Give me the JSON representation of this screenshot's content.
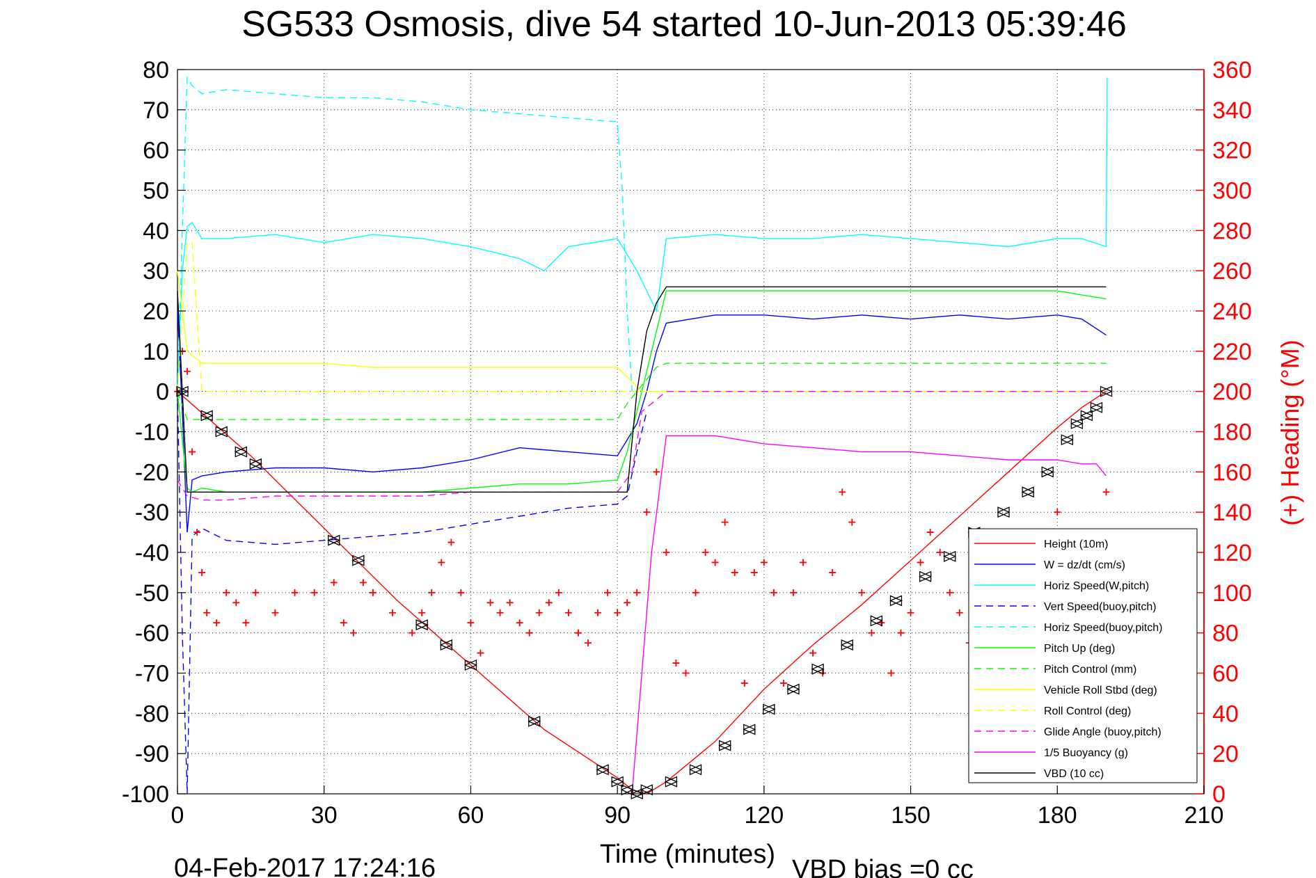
{
  "chart_data": {
    "type": "line",
    "title": "SG533 Osmosis, dive 54 started 10-Jun-2013 05:39:46",
    "xlabel": "Time (minutes)",
    "ylabel_right": "(+) Heading (°M)",
    "footer_timestamp": "04-Feb-2017 17:24:16",
    "footer_vbd": "VBD bias =0 cc",
    "xlim": [
      0,
      210
    ],
    "ylim": [
      -100,
      80
    ],
    "ylim_right": [
      0,
      360
    ],
    "x_ticks": [
      "0",
      "30",
      "60",
      "90",
      "120",
      "150",
      "180",
      "210"
    ],
    "y_ticks": [
      "80",
      "70",
      "60",
      "50",
      "40",
      "30",
      "20",
      "10",
      "0",
      "-10",
      "-20",
      "-30",
      "-40",
      "-50",
      "-60",
      "-70",
      "-80",
      "-90",
      "-100"
    ],
    "y_ticks_right": [
      "360",
      "340",
      "320",
      "300",
      "280",
      "260",
      "240",
      "220",
      "200",
      "180",
      "160",
      "140",
      "120",
      "100",
      "80",
      "60",
      "40",
      "20",
      "0"
    ],
    "grid": true,
    "legend_position": "bottom-right",
    "colors": {
      "red": "#ff0000",
      "blue": "#0000ff",
      "cyan": "#00ffff",
      "green": "#00ff00",
      "yellow": "#ffff00",
      "magenta": "#ff00ff",
      "black": "#000000"
    },
    "series": [
      {
        "name": "Height (10m)",
        "color": "#ff0000",
        "style": "solid",
        "x": [
          0,
          15,
          30,
          45,
          60,
          75,
          90,
          93,
          96,
          100,
          110,
          120,
          130,
          140,
          150,
          160,
          170,
          180,
          185,
          190
        ],
        "y": [
          0,
          -16,
          -34,
          -52,
          -68,
          -84,
          -96,
          -99,
          -100,
          -97,
          -87,
          -74,
          -63,
          -53,
          -42,
          -31,
          -20,
          -9,
          -4,
          0
        ]
      },
      {
        "name": "W = dz/dt (cm/s)",
        "color": "#0000ff",
        "style": "solid",
        "x": [
          0,
          1,
          2,
          3,
          5,
          10,
          20,
          30,
          40,
          50,
          55,
          60,
          70,
          80,
          90,
          92,
          94,
          96,
          98,
          100,
          110,
          120,
          130,
          140,
          150,
          160,
          170,
          180,
          185,
          190
        ],
        "y": [
          20,
          -5,
          -35,
          -22,
          -21,
          -20,
          -19,
          -19,
          -20,
          -19,
          -18,
          -17,
          -14,
          -15,
          -16,
          -12,
          -8,
          0,
          10,
          17,
          19,
          19,
          18,
          19,
          18,
          19,
          18,
          19,
          18,
          14
        ]
      },
      {
        "name": "Horiz Speed(W,pitch)",
        "color": "#00ffff",
        "style": "solid",
        "x": [
          0,
          1,
          2,
          3,
          5,
          10,
          20,
          30,
          40,
          50,
          60,
          70,
          75,
          80,
          90,
          92,
          94,
          96,
          98,
          100,
          110,
          120,
          130,
          140,
          150,
          160,
          170,
          180,
          185,
          190,
          190.2
        ],
        "y": [
          0,
          30,
          41,
          42,
          38,
          38,
          39,
          37,
          39,
          38,
          36,
          33,
          30,
          36,
          38,
          34,
          30,
          25,
          20,
          38,
          39,
          38,
          38,
          39,
          38,
          37,
          36,
          38,
          38,
          36,
          78
        ]
      },
      {
        "name": "Vert Speed(buoy,pitch)",
        "color": "#0000ff",
        "style": "dashed",
        "x": [
          0,
          1,
          2,
          3,
          5,
          10,
          20,
          30,
          40,
          50,
          60,
          70,
          80,
          90,
          92,
          94,
          96
        ],
        "y": [
          0,
          -60,
          -100,
          -36,
          -34,
          -37,
          -38,
          -37,
          -36,
          -35,
          -33,
          -31,
          -29,
          -28,
          -26,
          -15,
          -5
        ]
      },
      {
        "name": "Horiz Speed(buoy,pitch)",
        "color": "#00ffff",
        "style": "dashed",
        "x": [
          0,
          1,
          2,
          3,
          5,
          10,
          20,
          30,
          40,
          50,
          60,
          70,
          80,
          90,
          91,
          92,
          93
        ],
        "y": [
          0,
          40,
          78,
          76,
          74,
          75,
          74,
          73,
          73,
          72,
          70,
          69,
          68,
          67,
          50,
          20,
          0
        ]
      },
      {
        "name": "Pitch Up (deg)",
        "color": "#00ff00",
        "style": "solid",
        "x": [
          0,
          2,
          3,
          5,
          10,
          20,
          30,
          40,
          50,
          60,
          70,
          80,
          90,
          92,
          94,
          96,
          98,
          100,
          110,
          120,
          130,
          140,
          150,
          160,
          170,
          180,
          185,
          190
        ],
        "y": [
          0,
          -24,
          -25,
          -24,
          -25,
          -25,
          -25,
          -25,
          -25,
          -24,
          -23,
          -23,
          -22,
          -15,
          -5,
          5,
          15,
          25,
          25,
          25,
          25,
          25,
          25,
          25,
          25,
          25,
          24,
          23
        ]
      },
      {
        "name": "Pitch Control (mm)",
        "color": "#00ff00",
        "style": "dashed",
        "x": [
          0,
          2,
          5,
          10,
          20,
          30,
          40,
          50,
          60,
          70,
          80,
          90,
          92,
          94,
          96,
          98,
          100,
          110,
          120,
          130,
          140,
          150,
          160,
          170,
          180,
          190
        ],
        "y": [
          0,
          -7,
          -7,
          -7,
          -7,
          -7,
          -7,
          -7,
          -7,
          -7,
          -7,
          -7,
          -3,
          0,
          3,
          6,
          7,
          7,
          7,
          7,
          7,
          7,
          7,
          7,
          7,
          7
        ]
      },
      {
        "name": "Vehicle Roll Stbd (deg)",
        "color": "#ffff00",
        "style": "solid",
        "x": [
          0,
          2,
          5,
          10,
          20,
          30,
          40,
          50,
          60,
          70,
          80,
          90,
          95,
          100,
          110,
          120,
          130,
          140,
          150,
          160,
          170,
          180,
          190
        ],
        "y": [
          30,
          10,
          7,
          7,
          7,
          7,
          6,
          6,
          6,
          6,
          6,
          6,
          0,
          0,
          0,
          0,
          0,
          0,
          0,
          0,
          0,
          0,
          0
        ]
      },
      {
        "name": "Roll Control (deg)",
        "color": "#ffff00",
        "style": "dashed",
        "x": [
          0,
          2,
          3,
          5,
          10,
          20,
          30,
          40,
          50,
          60,
          70,
          80,
          90,
          95,
          100,
          110,
          120,
          130,
          140,
          150,
          160,
          170,
          180,
          190
        ],
        "y": [
          0,
          37,
          37,
          0,
          0,
          0,
          0,
          0,
          0,
          0,
          0,
          0,
          0,
          0,
          0,
          0,
          0,
          0,
          0,
          0,
          0,
          0,
          0,
          0
        ]
      },
      {
        "name": "Glide Angle (buoy,pitch)",
        "color": "#ff00ff",
        "style": "dashed",
        "x": [
          0,
          2,
          5,
          10,
          20,
          30,
          40,
          50,
          60,
          70,
          80,
          90,
          93,
          95,
          100,
          120,
          140,
          160,
          180,
          190
        ],
        "y": [
          -22,
          -26,
          -27,
          -27,
          -26,
          -26,
          -26,
          -26,
          -25,
          -25,
          -25,
          -25,
          -20,
          -5,
          0,
          0,
          0,
          0,
          0,
          0
        ]
      },
      {
        "name": "1/5 Buoyancy (g)",
        "color": "#ff00ff",
        "style": "solid",
        "x": [
          93,
          95,
          97,
          100,
          105,
          110,
          120,
          130,
          140,
          150,
          160,
          170,
          180,
          185,
          188,
          190
        ],
        "y": [
          -100,
          -70,
          -40,
          -11,
          -11,
          -11,
          -13,
          -14,
          -15,
          -15,
          -16,
          -17,
          -17,
          -18,
          -18,
          -21
        ]
      },
      {
        "name": "VBD (10 cc)",
        "color": "#000000",
        "style": "solid",
        "x": [
          0,
          1,
          2,
          5,
          30,
          60,
          90,
          92,
          94,
          96,
          98,
          100,
          110,
          130,
          150,
          170,
          190
        ],
        "y": [
          25,
          0,
          -25,
          -25,
          -25,
          -25,
          -25,
          -25,
          0,
          15,
          22,
          26,
          26,
          26,
          26,
          26,
          26
        ]
      },
      {
        "name": "Heading",
        "color": "#ff0000",
        "style": "markers",
        "axis": "right",
        "x": [
          0,
          1,
          2,
          3,
          4,
          5,
          6,
          8,
          10,
          12,
          14,
          16,
          20,
          24,
          28,
          32,
          34,
          36,
          38,
          40,
          44,
          48,
          50,
          52,
          54,
          56,
          58,
          60,
          62,
          64,
          66,
          68,
          70,
          72,
          74,
          76,
          78,
          80,
          82,
          84,
          86,
          88,
          90,
          92,
          94,
          96,
          98,
          100,
          102,
          104,
          106,
          108,
          110,
          112,
          114,
          116,
          118,
          120,
          122,
          124,
          126,
          128,
          130,
          132,
          134,
          136,
          138,
          140,
          142,
          144,
          146,
          148,
          150,
          152,
          154,
          156,
          158,
          160,
          162,
          164,
          166,
          168,
          170,
          172,
          174,
          176,
          178,
          180,
          182,
          184,
          186,
          188,
          190
        ],
        "y": [
          200,
          220,
          210,
          170,
          130,
          110,
          90,
          85,
          100,
          95,
          85,
          100,
          90,
          100,
          100,
          105,
          85,
          80,
          105,
          100,
          90,
          80,
          90,
          100,
          115,
          125,
          100,
          85,
          70,
          95,
          90,
          95,
          85,
          80,
          90,
          95,
          100,
          90,
          80,
          75,
          90,
          100,
          90,
          95,
          100,
          140,
          160,
          120,
          65,
          60,
          100,
          120,
          115,
          135,
          110,
          55,
          110,
          115,
          100,
          55,
          100,
          115,
          70,
          60,
          110,
          150,
          135,
          100,
          80,
          85,
          60,
          80,
          90,
          115,
          130,
          120,
          100,
          90,
          75,
          60,
          80,
          70,
          90,
          80,
          100,
          105,
          80,
          140,
          100,
          120,
          125,
          130,
          150
        ]
      },
      {
        "name": "Depth markers",
        "color": "#000000",
        "style": "triangles",
        "x": [
          1,
          6,
          9,
          13,
          16,
          32,
          37,
          50,
          55,
          60,
          73,
          87,
          90,
          92,
          94,
          96,
          101,
          106,
          112,
          117,
          121,
          126,
          131,
          137,
          143,
          147,
          153,
          158,
          163,
          169,
          174,
          178,
          182,
          184,
          186,
          188,
          190
        ],
        "y": [
          0,
          -6,
          -10,
          -15,
          -18,
          -37,
          -42,
          -58,
          -63,
          -68,
          -82,
          -94,
          -97,
          -99,
          -100,
          -99,
          -97,
          -94,
          -88,
          -84,
          -79,
          -74,
          -69,
          -63,
          -57,
          -52,
          -46,
          -41,
          -35,
          -30,
          -25,
          -20,
          -12,
          -8,
          -6,
          -4,
          0
        ]
      }
    ]
  }
}
